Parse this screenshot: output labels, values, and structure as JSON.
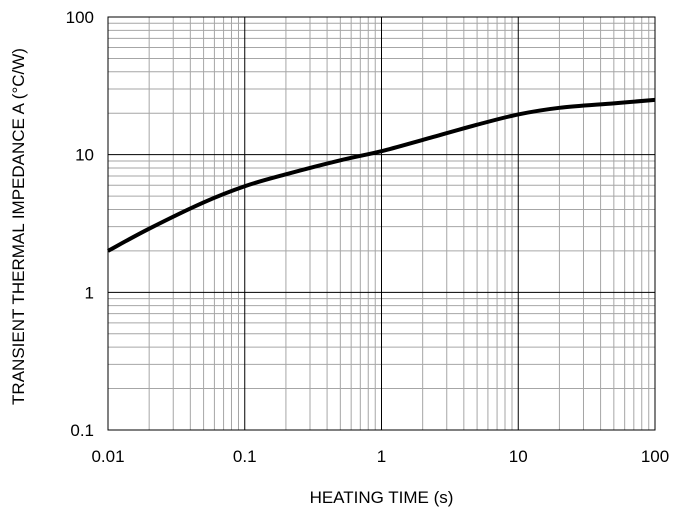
{
  "chart_data": {
    "type": "line",
    "xscale": "log",
    "yscale": "log",
    "xlabel": "HEATING TIME (s)",
    "ylabel": "TRANSIENT THERMAL IMPEDANCE A (°C/W)",
    "xlim": [
      0.01,
      100
    ],
    "ylim": [
      0.1,
      100
    ],
    "grid": true,
    "x_ticks": [
      0.01,
      0.1,
      1,
      10,
      100
    ],
    "x_tick_labels": [
      "0.01",
      "0.1",
      "1",
      "10",
      "100"
    ],
    "y_ticks": [
      0.1,
      1,
      10,
      100
    ],
    "y_tick_labels": [
      "0.1",
      "1",
      "10",
      "100"
    ],
    "series": [
      {
        "x": [
          0.01,
          0.02,
          0.05,
          0.1,
          0.2,
          0.5,
          1,
          2,
          5,
          10,
          20,
          50,
          100
        ],
        "y": [
          2.0,
          2.9,
          4.5,
          5.9,
          7.2,
          9.1,
          10.6,
          12.8,
          16.5,
          19.6,
          21.9,
          23.6,
          25.0
        ]
      }
    ],
    "colors": {
      "line": "#000000",
      "major_grid": "#000000",
      "minor_grid": "#a6a6a6",
      "frame": "#000000"
    }
  }
}
